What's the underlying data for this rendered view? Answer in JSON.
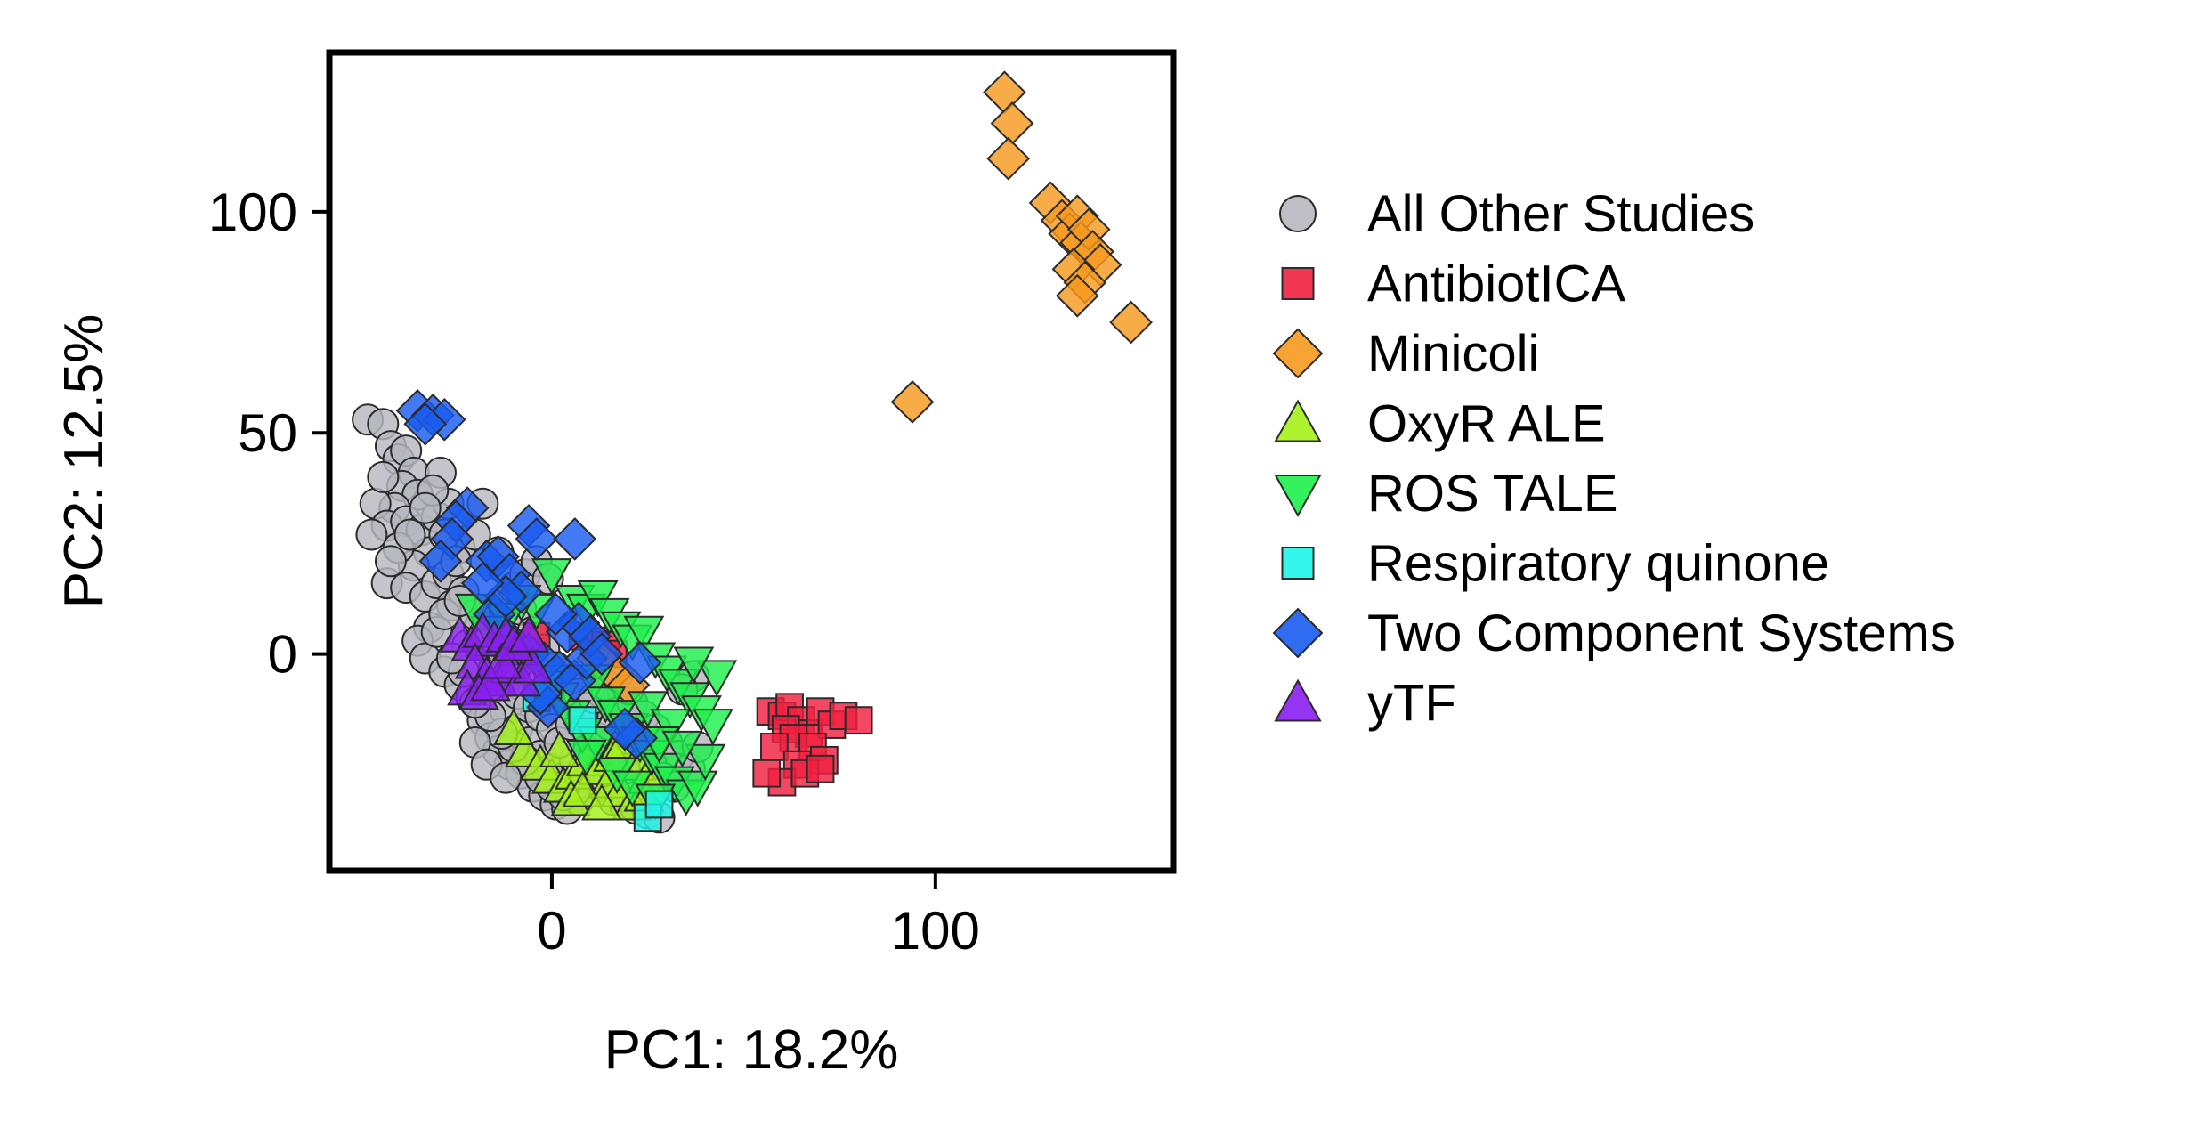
{
  "chart_data": {
    "type": "scatter",
    "title": "",
    "xlabel": "PC1: 18.2%",
    "ylabel": "PC2: 12.5%",
    "xlim": [
      -58,
      162
    ],
    "ylim": [
      -49,
      136
    ],
    "xticks": [
      0,
      100
    ],
    "yticks": [
      0,
      50,
      100
    ],
    "xtick_labels": [
      "0",
      "100"
    ],
    "ytick_labels": [
      "0",
      "50",
      "100"
    ],
    "grid": false,
    "legend_position": "right, outside plot area",
    "series": [
      {
        "name": "All Other Studies",
        "marker": "circle",
        "color": "#b7b7be",
        "points": [
          [
            -48,
            53
          ],
          [
            -44,
            52
          ],
          [
            -42,
            47
          ],
          [
            -40,
            44
          ],
          [
            -38,
            46
          ],
          [
            -36,
            41
          ],
          [
            -39,
            38
          ],
          [
            -35,
            36
          ],
          [
            -41,
            33
          ],
          [
            -46,
            34
          ],
          [
            -43,
            29
          ],
          [
            -38,
            30
          ],
          [
            -34,
            28
          ],
          [
            -30,
            31
          ],
          [
            -27,
            34
          ],
          [
            -18,
            34
          ],
          [
            -32,
            23
          ],
          [
            -36,
            20
          ],
          [
            -43,
            16
          ],
          [
            -38,
            15
          ],
          [
            -33,
            13
          ],
          [
            -30,
            16
          ],
          [
            -27,
            18
          ],
          [
            -26,
            11
          ],
          [
            -32,
            6
          ],
          [
            -35,
            3
          ],
          [
            -33,
            -1
          ],
          [
            -28,
            -4
          ],
          [
            -24,
            -7
          ],
          [
            -21,
            -10
          ],
          [
            -18,
            -15
          ],
          [
            -16,
            -19
          ],
          [
            -14,
            -22
          ],
          [
            -11,
            -25
          ],
          [
            -8,
            -27
          ],
          [
            -5,
            -30
          ],
          [
            -2,
            -32
          ],
          [
            1,
            -34
          ],
          [
            4,
            -35
          ],
          [
            7,
            -33
          ],
          [
            10,
            -31
          ],
          [
            13,
            -30
          ],
          [
            16,
            -33
          ],
          [
            19,
            -34
          ],
          [
            22,
            -35
          ],
          [
            25,
            -36
          ],
          [
            28,
            -37
          ],
          [
            -16,
            -8
          ],
          [
            -12,
            -13
          ],
          [
            -9,
            -17
          ],
          [
            -6,
            -20
          ],
          [
            -3,
            -23
          ],
          [
            0,
            -26
          ],
          [
            3,
            -28
          ],
          [
            6,
            -24
          ],
          [
            9,
            -22
          ],
          [
            12,
            -19
          ],
          [
            15,
            -16
          ],
          [
            18,
            -13
          ],
          [
            21,
            -11
          ],
          [
            24,
            -14
          ],
          [
            27,
            -17
          ],
          [
            30,
            -20
          ],
          [
            33,
            -23
          ],
          [
            36,
            -26
          ],
          [
            38,
            -21
          ],
          [
            37,
            -5
          ],
          [
            34,
            -8
          ],
          [
            -22,
            2
          ],
          [
            -19,
            6
          ],
          [
            -16,
            9
          ],
          [
            -13,
            12
          ],
          [
            -10,
            15
          ],
          [
            -7,
            18
          ],
          [
            -4,
            21
          ],
          [
            -1,
            17
          ],
          [
            -24,
            24
          ],
          [
            -20,
            27
          ],
          [
            -14,
            23
          ],
          [
            -8,
            10
          ],
          [
            -5,
            5
          ],
          [
            -2,
            1
          ],
          [
            1,
            -3
          ],
          [
            4,
            -6
          ],
          [
            7,
            -9
          ],
          [
            10,
            -12
          ],
          [
            -29,
            41
          ],
          [
            -31,
            37
          ],
          [
            -28,
            27
          ],
          [
            -25,
            21
          ],
          [
            -23,
            14
          ],
          [
            -20,
            9
          ],
          [
            -18,
            2
          ],
          [
            -15,
            -3
          ],
          [
            -12,
            -6
          ],
          [
            -9,
            -9
          ],
          [
            -6,
            -12
          ],
          [
            -3,
            -14
          ],
          [
            0,
            -17
          ],
          [
            2,
            -20
          ],
          [
            5,
            -16
          ],
          [
            8,
            -14
          ],
          [
            11,
            -10
          ],
          [
            14,
            -7
          ],
          [
            17,
            -5
          ],
          [
            20,
            -8
          ],
          [
            23,
            -22
          ],
          [
            26,
            -25
          ],
          [
            29,
            -28
          ],
          [
            32,
            -30
          ],
          [
            19,
            -26
          ],
          [
            15,
            -24
          ],
          [
            12,
            -27
          ],
          [
            9,
            -29
          ],
          [
            6,
            -31
          ],
          [
            3,
            -32
          ],
          [
            0,
            -30
          ],
          [
            -3,
            -28
          ],
          [
            -7,
            -24
          ],
          [
            -10,
            -21
          ],
          [
            -13,
            -18
          ],
          [
            -16,
            -14
          ],
          [
            -20,
            -11
          ],
          [
            -23,
            -4
          ],
          [
            -26,
            -1
          ],
          [
            -30,
            5
          ],
          [
            -28,
            9
          ],
          [
            -24,
            12
          ],
          [
            -40,
            24
          ],
          [
            -37,
            27
          ],
          [
            -33,
            33
          ],
          [
            -44,
            40
          ],
          [
            -47,
            27
          ],
          [
            -42,
            21
          ],
          [
            -20,
            -20
          ],
          [
            -17,
            -25
          ],
          [
            -12,
            -28
          ]
        ]
      },
      {
        "name": "AntibiotICA",
        "marker": "square",
        "color": "#f0203f",
        "points": [
          [
            57,
            -13
          ],
          [
            60,
            -14
          ],
          [
            62,
            -12
          ],
          [
            65,
            -15
          ],
          [
            67,
            -18
          ],
          [
            70,
            -13
          ],
          [
            73,
            -16
          ],
          [
            76,
            -14
          ],
          [
            80,
            -15
          ],
          [
            61,
            -17
          ],
          [
            63,
            -19
          ],
          [
            58,
            -21
          ],
          [
            68,
            -21
          ],
          [
            71,
            -24
          ],
          [
            64,
            -25
          ],
          [
            60,
            -29
          ],
          [
            56,
            -27
          ],
          [
            66,
            -27
          ],
          [
            70,
            -26
          ],
          [
            8,
            4
          ],
          [
            11,
            3
          ],
          [
            14,
            2
          ],
          [
            16,
            0
          ],
          [
            -4,
            4
          ]
        ]
      },
      {
        "name": "Minicoli",
        "marker": "diamond",
        "color": "#f79a1e",
        "points": [
          [
            118,
            127
          ],
          [
            120,
            120
          ],
          [
            119,
            112
          ],
          [
            130,
            102
          ],
          [
            133,
            98
          ],
          [
            135,
            95
          ],
          [
            137,
            99
          ],
          [
            138,
            93
          ],
          [
            140,
            96
          ],
          [
            141,
            91
          ],
          [
            143,
            88
          ],
          [
            136,
            87
          ],
          [
            139,
            84
          ],
          [
            137,
            81
          ],
          [
            151,
            75
          ],
          [
            94,
            57
          ],
          [
            16,
            -4
          ],
          [
            20,
            -7
          ],
          [
            12,
            -1
          ]
        ]
      },
      {
        "name": "OxyR ALE",
        "marker": "triangle-up",
        "color": "#a4f21a",
        "points": [
          [
            -7,
            -22
          ],
          [
            -3,
            -25
          ],
          [
            0,
            -28
          ],
          [
            3,
            -30
          ],
          [
            6,
            -27
          ],
          [
            9,
            -24
          ],
          [
            12,
            -26
          ],
          [
            15,
            -29
          ],
          [
            18,
            -31
          ],
          [
            21,
            -34
          ],
          [
            24,
            -32
          ],
          [
            5,
            -33
          ],
          [
            8,
            -31
          ],
          [
            13,
            -34
          ],
          [
            2,
            -22
          ],
          [
            16,
            -23
          ],
          [
            19,
            -20
          ],
          [
            22,
            -25
          ],
          [
            25,
            -28
          ],
          [
            -10,
            -17
          ]
        ]
      },
      {
        "name": "ROS TALE",
        "marker": "triangle-down",
        "color": "#1ef04c",
        "points": [
          [
            0,
            18
          ],
          [
            6,
            12
          ],
          [
            9,
            10
          ],
          [
            12,
            13
          ],
          [
            15,
            9
          ],
          [
            18,
            6
          ],
          [
            21,
            3
          ],
          [
            24,
            5
          ],
          [
            27,
            -1
          ],
          [
            30,
            -4
          ],
          [
            33,
            -7
          ],
          [
            36,
            -10
          ],
          [
            39,
            -13
          ],
          [
            42,
            -16
          ],
          [
            11,
            -6
          ],
          [
            14,
            -11
          ],
          [
            17,
            -14
          ],
          [
            20,
            -17
          ],
          [
            23,
            -20
          ],
          [
            26,
            -23
          ],
          [
            29,
            -26
          ],
          [
            32,
            -29
          ],
          [
            35,
            -32
          ],
          [
            38,
            -30
          ],
          [
            40,
            -24
          ],
          [
            43,
            -5
          ],
          [
            37,
            -2
          ],
          [
            -4,
            10
          ],
          [
            -8,
            12
          ],
          [
            -12,
            8
          ],
          [
            -16,
            5
          ],
          [
            -20,
            10
          ],
          [
            8,
            -18
          ],
          [
            5,
            -14
          ],
          [
            2,
            -10
          ],
          [
            -1,
            -6
          ],
          [
            25,
            -12
          ],
          [
            31,
            -16
          ],
          [
            28,
            -20
          ],
          [
            34,
            -21
          ],
          [
            17,
            -27
          ],
          [
            21,
            -30
          ],
          [
            27,
            -33
          ],
          [
            12,
            -20
          ],
          [
            9,
            -23
          ]
        ]
      },
      {
        "name": "Respiratory quinone",
        "marker": "square",
        "color": "#1ef5e8",
        "points": [
          [
            8,
            -15
          ],
          [
            25,
            -37
          ],
          [
            28,
            -34
          ],
          [
            -4,
            -10
          ],
          [
            -1,
            -7
          ]
        ]
      },
      {
        "name": "Two Component Systems",
        "marker": "diamond",
        "color": "#1a5cf0",
        "points": [
          [
            -35,
            55
          ],
          [
            -31,
            54
          ],
          [
            -28,
            53
          ],
          [
            -33,
            52
          ],
          [
            -22,
            33
          ],
          [
            -25,
            30
          ],
          [
            -26,
            26
          ],
          [
            -29,
            21
          ],
          [
            -17,
            21
          ],
          [
            -14,
            22
          ],
          [
            -11,
            18
          ],
          [
            -6,
            29
          ],
          [
            -4,
            26
          ],
          [
            6,
            26
          ],
          [
            -8,
            14
          ],
          [
            -15,
            9
          ],
          [
            -11,
            3
          ],
          [
            -6,
            0
          ],
          [
            -2,
            -2
          ],
          [
            2,
            -4
          ],
          [
            6,
            -6
          ],
          [
            9,
            -1
          ],
          [
            4,
            5
          ],
          [
            7,
            7
          ],
          [
            10,
            4
          ],
          [
            13,
            0
          ],
          [
            1,
            9
          ],
          [
            23,
            -2
          ],
          [
            -1,
            -12
          ],
          [
            -3,
            -9
          ],
          [
            22,
            -19
          ],
          [
            19,
            -17
          ],
          [
            -12,
            13
          ],
          [
            -18,
            16
          ]
        ]
      },
      {
        "name": "yTF",
        "marker": "triangle-up",
        "color": "#8a1ef0",
        "points": [
          [
            -24,
            4
          ],
          [
            -21,
            2
          ],
          [
            -18,
            5
          ],
          [
            -15,
            3
          ],
          [
            -12,
            4
          ],
          [
            -9,
            1
          ],
          [
            -20,
            -2
          ],
          [
            -17,
            -5
          ],
          [
            -14,
            -6
          ],
          [
            -11,
            -3
          ],
          [
            -8,
            -6
          ],
          [
            -5,
            -3
          ],
          [
            -22,
            -8
          ],
          [
            -19,
            -9
          ],
          [
            -16,
            -7
          ],
          [
            -13,
            -2
          ],
          [
            -10,
            2
          ],
          [
            -6,
            4
          ]
        ]
      }
    ]
  }
}
